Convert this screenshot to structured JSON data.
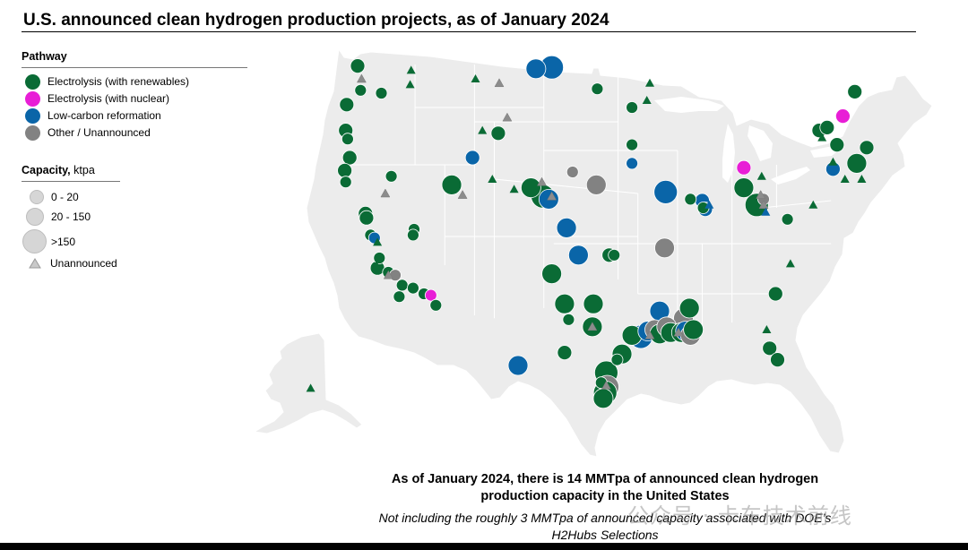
{
  "title": "U.S. announced clean hydrogen production projects, as of January 2024",
  "legend": {
    "pathway_title": "Pathway",
    "pathways": [
      {
        "label": "Electrolysis (with renewables)",
        "color": "#0a6b35"
      },
      {
        "label": "Electrolysis (with nuclear)",
        "color": "#e81ed6"
      },
      {
        "label": "Low-carbon reformation",
        "color": "#0a65a8"
      },
      {
        "label": "Other / Unannounced",
        "color": "#828282"
      }
    ],
    "capacity_title": "Capacity,",
    "capacity_unit": "ktpa",
    "capacity_classes": [
      "0 - 20",
      "20 - 150",
      ">150"
    ],
    "unannounced_label": "Unannounced"
  },
  "caption": {
    "main": "As of January 2024, there is 14 MMTpa of announced clean hydrogen production capacity in the United States",
    "sub": "Not including the roughly 3 MMTpa of announced capacity associated with DOE’s H2Hubs Selections"
  },
  "watermark": "公众号 · 卡车技术前线",
  "colors": {
    "land": "#ececec",
    "border": "#ffffff",
    "renewables": "#0a6b35",
    "nuclear": "#e81ed6",
    "reformation": "#0a65a8",
    "other": "#828282",
    "triangle_unannounced": "#8c8c8c"
  },
  "projects": [
    {
      "pathway": "renewables",
      "size": "med",
      "lon": -122.8,
      "lat": 48.9
    },
    {
      "pathway": "renewables",
      "size": "small",
      "lon": -122.5,
      "lat": 47.2
    },
    {
      "pathway": "renewables",
      "size": "small",
      "lon": -120.4,
      "lat": 47.0
    },
    {
      "pathway": "renewables",
      "size": "med",
      "lon": -123.9,
      "lat": 46.2
    },
    {
      "pathway": "renewables",
      "size": "med",
      "lon": -124.0,
      "lat": 44.4
    },
    {
      "pathway": "renewables",
      "size": "small",
      "lon": -123.8,
      "lat": 43.8
    },
    {
      "pathway": "renewables",
      "size": "med",
      "lon": -123.6,
      "lat": 42.5
    },
    {
      "pathway": "renewables",
      "size": "med",
      "lon": -124.1,
      "lat": 41.6
    },
    {
      "pathway": "renewables",
      "size": "small",
      "lon": -124.0,
      "lat": 40.8
    },
    {
      "pathway": "renewables",
      "size": "med",
      "lon": -122.0,
      "lat": 38.6
    },
    {
      "pathway": "renewables",
      "size": "med",
      "lon": -121.9,
      "lat": 38.3
    },
    {
      "pathway": "renewables",
      "size": "small",
      "lon": -121.5,
      "lat": 37.1
    },
    {
      "pathway": "reformation",
      "size": "small",
      "lon": -121.1,
      "lat": 36.9
    },
    {
      "pathway": "renewables",
      "size": "small",
      "lon": -120.6,
      "lat": 35.5
    },
    {
      "pathway": "renewables",
      "size": "med",
      "lon": -120.8,
      "lat": 34.8
    },
    {
      "pathway": "renewables",
      "size": "small",
      "lon": -119.7,
      "lat": 34.5
    },
    {
      "pathway": "other",
      "size": "small",
      "lon": -119.0,
      "lat": 34.3
    },
    {
      "pathway": "renewables",
      "size": "small",
      "lon": -118.3,
      "lat": 33.6
    },
    {
      "pathway": "renewables",
      "size": "small",
      "lon": -117.2,
      "lat": 33.4
    },
    {
      "pathway": "renewables",
      "size": "small",
      "lon": -118.6,
      "lat": 32.8
    },
    {
      "pathway": "renewables",
      "size": "small",
      "lon": -116.1,
      "lat": 33.0
    },
    {
      "pathway": "nuclear",
      "size": "small",
      "lon": -115.4,
      "lat": 32.9
    },
    {
      "pathway": "renewables",
      "size": "small",
      "lon": -114.9,
      "lat": 32.2
    },
    {
      "pathway": "renewables",
      "size": "small",
      "lon": -117.1,
      "lat": 37.5
    },
    {
      "pathway": "renewables",
      "size": "small",
      "lon": -117.2,
      "lat": 37.1
    },
    {
      "pathway": "renewables",
      "size": "small",
      "lon": -119.4,
      "lat": 41.2
    },
    {
      "pathway": "renewables",
      "size": "large",
      "lon": -113.3,
      "lat": 40.6
    },
    {
      "pathway": "reformation",
      "size": "med",
      "lon": -111.2,
      "lat": 42.5
    },
    {
      "pathway": "renewables",
      "size": "med",
      "lon": -108.6,
      "lat": 44.2
    },
    {
      "pathway": "renewables",
      "size": "large",
      "lon": -105.3,
      "lat": 40.4
    },
    {
      "pathway": "renewables",
      "size": "xlarge",
      "lon": -104.1,
      "lat": 39.8
    },
    {
      "pathway": "reformation",
      "size": "large",
      "lon": -103.5,
      "lat": 39.6
    },
    {
      "pathway": "other",
      "size": "small",
      "lon": -101.1,
      "lat": 41.5
    },
    {
      "pathway": "other",
      "size": "large",
      "lon": -98.7,
      "lat": 40.6
    },
    {
      "pathway": "reformation",
      "size": "large",
      "lon": -101.7,
      "lat": 37.6
    },
    {
      "pathway": "reformation",
      "size": "large",
      "lon": -100.5,
      "lat": 35.7
    },
    {
      "pathway": "renewables",
      "size": "large",
      "lon": -103.2,
      "lat": 34.4
    },
    {
      "pathway": "renewables",
      "size": "med",
      "lon": -97.4,
      "lat": 35.7
    },
    {
      "pathway": "renewables",
      "size": "small",
      "lon": -96.9,
      "lat": 35.7
    },
    {
      "pathway": "renewables",
      "size": "large",
      "lon": -101.9,
      "lat": 32.3
    },
    {
      "pathway": "renewables",
      "size": "large",
      "lon": -99.0,
      "lat": 32.3
    },
    {
      "pathway": "renewables",
      "size": "small",
      "lon": -101.5,
      "lat": 31.2
    },
    {
      "pathway": "renewables",
      "size": "large",
      "lon": -99.1,
      "lat": 30.7
    },
    {
      "pathway": "renewables",
      "size": "med",
      "lon": -101.9,
      "lat": 28.9
    },
    {
      "pathway": "reformation",
      "size": "large",
      "lon": -106.6,
      "lat": 28.0
    },
    {
      "pathway": "reformation",
      "size": "xlarge",
      "lon": -103.2,
      "lat": 48.8
    },
    {
      "pathway": "reformation",
      "size": "large",
      "lon": -104.8,
      "lat": 48.7
    },
    {
      "pathway": "renewables",
      "size": "small",
      "lon": -98.6,
      "lat": 47.3
    },
    {
      "pathway": "renewables",
      "size": "small",
      "lon": -95.1,
      "lat": 46.0
    },
    {
      "pathway": "renewables",
      "size": "small",
      "lon": -95.1,
      "lat": 43.4
    },
    {
      "pathway": "reformation",
      "size": "small",
      "lon": -95.1,
      "lat": 42.1
    },
    {
      "pathway": "reformation",
      "size": "xlarge",
      "lon": -91.7,
      "lat": 40.1
    },
    {
      "pathway": "renewables",
      "size": "small",
      "lon": -89.2,
      "lat": 39.6
    },
    {
      "pathway": "reformation",
      "size": "med",
      "lon": -88.0,
      "lat": 39.5
    },
    {
      "pathway": "renewables",
      "size": "small",
      "lon": -87.9,
      "lat": 39.0
    },
    {
      "pathway": "reformation",
      "size": "med",
      "lon": -87.7,
      "lat": 38.9
    },
    {
      "pathway": "other",
      "size": "large",
      "lon": -91.8,
      "lat": 36.2
    },
    {
      "pathway": "reformation",
      "size": "large",
      "lon": -92.3,
      "lat": 31.8
    },
    {
      "pathway": "other",
      "size": "large",
      "lon": -89.9,
      "lat": 31.3
    },
    {
      "pathway": "renewables",
      "size": "large",
      "lon": -89.3,
      "lat": 32.0
    },
    {
      "pathway": "nuclear",
      "size": "med",
      "lon": -83.8,
      "lat": 41.8
    },
    {
      "pathway": "renewables",
      "size": "large",
      "lon": -83.8,
      "lat": 40.4
    },
    {
      "pathway": "renewables",
      "size": "xlarge",
      "lon": -82.5,
      "lat": 39.2
    },
    {
      "pathway": "other",
      "size": "small",
      "lon": -81.8,
      "lat": 39.6
    },
    {
      "pathway": "renewables",
      "size": "small",
      "lon": -79.4,
      "lat": 38.2
    },
    {
      "pathway": "renewables",
      "size": "med",
      "lon": -76.2,
      "lat": 44.4
    },
    {
      "pathway": "renewables",
      "size": "med",
      "lon": -75.4,
      "lat": 44.6
    },
    {
      "pathway": "nuclear",
      "size": "med",
      "lon": -73.8,
      "lat": 45.4
    },
    {
      "pathway": "renewables",
      "size": "med",
      "lon": -72.6,
      "lat": 47.1
    },
    {
      "pathway": "renewables",
      "size": "med",
      "lon": -74.4,
      "lat": 43.4
    },
    {
      "pathway": "reformation",
      "size": "med",
      "lon": -74.8,
      "lat": 41.7
    },
    {
      "pathway": "renewables",
      "size": "med",
      "lon": -71.4,
      "lat": 43.2
    },
    {
      "pathway": "renewables",
      "size": "large",
      "lon": -72.4,
      "lat": 42.1
    },
    {
      "pathway": "renewables",
      "size": "med",
      "lon": -80.6,
      "lat": 33.0
    },
    {
      "pathway": "renewables",
      "size": "med",
      "lon": -81.2,
      "lat": 29.2
    },
    {
      "pathway": "renewables",
      "size": "med",
      "lon": -80.4,
      "lat": 28.4
    },
    {
      "pathway": "renewables",
      "size": "large",
      "lon": -95.1,
      "lat": 30.1
    },
    {
      "pathway": "reformation",
      "size": "xlarge",
      "lon": -94.2,
      "lat": 30.0
    },
    {
      "pathway": "reformation",
      "size": "large",
      "lon": -93.5,
      "lat": 30.4
    },
    {
      "pathway": "other",
      "size": "large",
      "lon": -92.8,
      "lat": 30.5
    },
    {
      "pathway": "renewables",
      "size": "large",
      "lon": -92.3,
      "lat": 30.2
    },
    {
      "pathway": "other",
      "size": "large",
      "lon": -91.6,
      "lat": 30.7
    },
    {
      "pathway": "renewables",
      "size": "large",
      "lon": -91.2,
      "lat": 30.3
    },
    {
      "pathway": "reformation",
      "size": "xlarge",
      "lon": -90.6,
      "lat": 30.5
    },
    {
      "pathway": "renewables",
      "size": "large",
      "lon": -90.1,
      "lat": 30.3
    },
    {
      "pathway": "reformation",
      "size": "large",
      "lon": -89.7,
      "lat": 30.4
    },
    {
      "pathway": "other",
      "size": "large",
      "lon": -89.2,
      "lat": 30.1
    },
    {
      "pathway": "renewables",
      "size": "large",
      "lon": -88.9,
      "lat": 30.5
    },
    {
      "pathway": "renewables",
      "size": "large",
      "lon": -96.1,
      "lat": 28.8
    },
    {
      "pathway": "renewables",
      "size": "small",
      "lon": -96.6,
      "lat": 28.4
    },
    {
      "pathway": "renewables",
      "size": "xlarge",
      "lon": -97.7,
      "lat": 27.5
    },
    {
      "pathway": "other",
      "size": "xlarge",
      "lon": -97.6,
      "lat": 26.5
    },
    {
      "pathway": "renewables",
      "size": "xlarge",
      "lon": -97.8,
      "lat": 26.1
    },
    {
      "pathway": "renewables",
      "size": "large",
      "lon": -98.0,
      "lat": 25.7
    },
    {
      "pathway": "renewables",
      "size": "small",
      "lon": -98.2,
      "lat": 26.8
    }
  ],
  "triangles": [
    {
      "pathway": "other",
      "lon": -122.4,
      "lat": 48.0
    },
    {
      "pathway": "renewables",
      "lon": -117.4,
      "lat": 48.6
    },
    {
      "pathway": "renewables",
      "lon": -117.5,
      "lat": 47.6
    },
    {
      "pathway": "renewables",
      "lon": -110.9,
      "lat": 48.0
    },
    {
      "pathway": "other",
      "lon": -108.5,
      "lat": 47.7
    },
    {
      "pathway": "renewables",
      "lon": -110.2,
      "lat": 44.4
    },
    {
      "pathway": "renewables",
      "lon": -109.2,
      "lat": 41.0
    },
    {
      "pathway": "other",
      "lon": -112.2,
      "lat": 39.9
    },
    {
      "pathway": "renewables",
      "lon": -107.0,
      "lat": 40.3
    },
    {
      "pathway": "other",
      "lon": -107.7,
      "lat": 45.3
    },
    {
      "pathway": "other",
      "lon": -104.2,
      "lat": 40.8
    },
    {
      "pathway": "renewables",
      "lon": -93.3,
      "lat": 47.7
    },
    {
      "pathway": "renewables",
      "lon": -93.6,
      "lat": 46.5
    },
    {
      "pathway": "reformation",
      "lon": -87.3,
      "lat": 39.2
    },
    {
      "pathway": "renewables",
      "lon": -82.0,
      "lat": 41.2
    },
    {
      "pathway": "other",
      "lon": -82.1,
      "lat": 39.9
    },
    {
      "pathway": "other",
      "lon": -81.8,
      "lat": 39.2
    },
    {
      "pathway": "reformation",
      "lon": -81.6,
      "lat": 38.7
    },
    {
      "pathway": "renewables",
      "lon": -75.9,
      "lat": 43.9
    },
    {
      "pathway": "renewables",
      "lon": -74.8,
      "lat": 42.2
    },
    {
      "pathway": "renewables",
      "lon": -73.6,
      "lat": 41.0
    },
    {
      "pathway": "renewables",
      "lon": -71.9,
      "lat": 41.0
    },
    {
      "pathway": "renewables",
      "lon": -76.8,
      "lat": 39.2
    },
    {
      "pathway": "renewables",
      "lon": -79.1,
      "lat": 35.1
    },
    {
      "pathway": "renewables",
      "lon": -81.5,
      "lat": 30.5
    },
    {
      "pathway": "other",
      "lon": -103.2,
      "lat": 39.8
    },
    {
      "pathway": "other",
      "lon": -99.1,
      "lat": 30.7
    },
    {
      "pathway": "other",
      "lon": -93.3,
      "lat": 30.1
    },
    {
      "pathway": "other",
      "lon": -90.4,
      "lat": 30.3
    },
    {
      "pathway": "other",
      "lon": -97.7,
      "lat": 26.6
    },
    {
      "pathway": "other",
      "lon": -119.7,
      "lat": 34.3
    },
    {
      "pathway": "renewables",
      "lon": -120.8,
      "lat": 36.6
    },
    {
      "pathway": "renewables",
      "lon": -120.9,
      "lat": 35.0
    },
    {
      "pathway": "renewables",
      "lon": -150.0,
      "lat": 61.1
    },
    {
      "pathway": "other",
      "lon": -120.0,
      "lat": 40.0
    }
  ]
}
